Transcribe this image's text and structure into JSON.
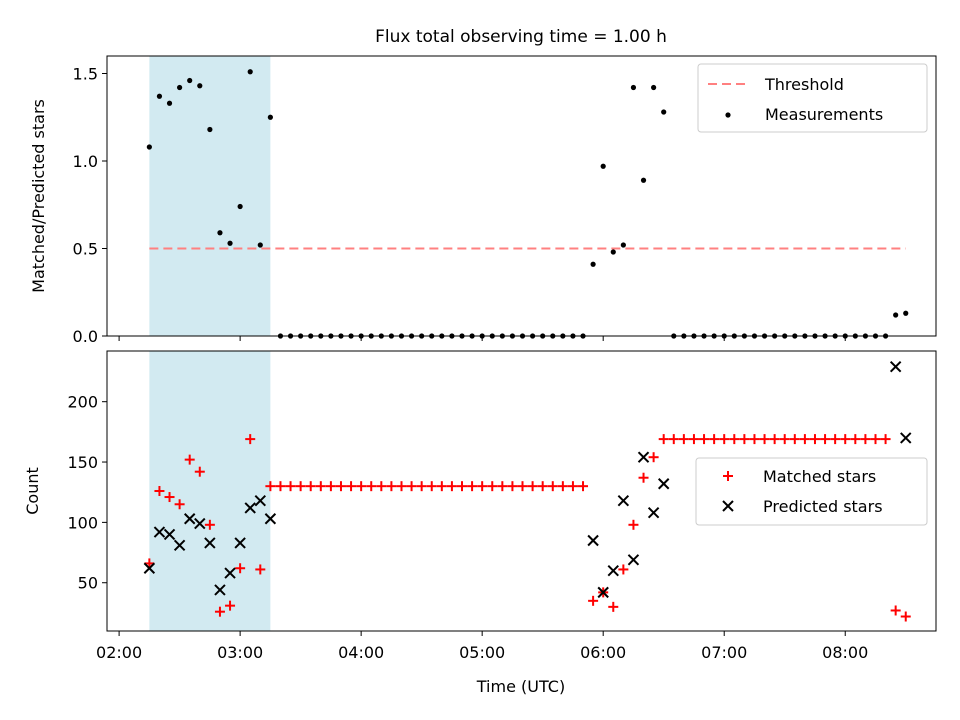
{
  "title": "Flux total observing time = 1.00 h",
  "xlabel": "Time (UTC)",
  "x_tick_labels": [
    "02:00",
    "03:00",
    "04:00",
    "05:00",
    "06:00",
    "07:00",
    "08:00"
  ],
  "colors": {
    "shade": "#add8e6",
    "threshold": "#ff8080",
    "measurements": "#000000",
    "matched": "#ff0000",
    "predicted": "#000000"
  },
  "chart_data": [
    {
      "type": "scatter",
      "ylabel": "Matched/Predicted stars",
      "xlim": [
        "01:54",
        "08:45"
      ],
      "ylim": [
        0,
        1.6
      ],
      "y_ticks": [
        "0.0",
        "0.5",
        "1.0",
        "1.5"
      ],
      "y_tick_values": [
        0,
        0.5,
        1.0,
        1.5
      ],
      "legend_position": "top-right",
      "legend": [
        "Threshold",
        "Measurements"
      ],
      "shaded_interval": [
        "02:15",
        "03:15"
      ],
      "threshold": {
        "name": "Threshold",
        "y": 0.5,
        "x_range": [
          "02:15",
          "08:30"
        ],
        "style": "dashed"
      },
      "measurements": {
        "name": "Measurements",
        "x": [
          "02:15",
          "02:20",
          "02:25",
          "02:30",
          "02:35",
          "02:40",
          "02:45",
          "02:50",
          "02:55",
          "03:00",
          "03:05",
          "03:10",
          "03:15",
          "03:20",
          "03:25",
          "03:30",
          "03:35",
          "03:40",
          "03:45",
          "03:50",
          "03:55",
          "04:00",
          "04:05",
          "04:10",
          "04:15",
          "04:20",
          "04:25",
          "04:30",
          "04:35",
          "04:40",
          "04:45",
          "04:50",
          "04:55",
          "05:00",
          "05:05",
          "05:10",
          "05:15",
          "05:20",
          "05:25",
          "05:30",
          "05:35",
          "05:40",
          "05:45",
          "05:50",
          "05:55",
          "06:00",
          "06:05",
          "06:10",
          "06:15",
          "06:20",
          "06:25",
          "06:30",
          "06:35",
          "06:40",
          "06:45",
          "06:50",
          "06:55",
          "07:00",
          "07:05",
          "07:10",
          "07:15",
          "07:20",
          "07:25",
          "07:30",
          "07:35",
          "07:40",
          "07:45",
          "07:50",
          "07:55",
          "08:00",
          "08:05",
          "08:10",
          "08:15",
          "08:20",
          "08:25",
          "08:30"
        ],
        "y": [
          1.08,
          1.37,
          1.33,
          1.42,
          1.46,
          1.43,
          1.18,
          0.59,
          0.53,
          0.74,
          1.51,
          0.52,
          1.25,
          0,
          0,
          0,
          0,
          0,
          0,
          0,
          0,
          0,
          0,
          0,
          0,
          0,
          0,
          0,
          0,
          0,
          0,
          0,
          0,
          0,
          0,
          0,
          0,
          0,
          0,
          0,
          0,
          0,
          0,
          0,
          0.41,
          0.97,
          0.48,
          0.52,
          1.42,
          0.89,
          1.42,
          1.28,
          0,
          0,
          0,
          0,
          0,
          0,
          0,
          0,
          0,
          0,
          0,
          0,
          0,
          0,
          0,
          0,
          0,
          0,
          0,
          0,
          0,
          0,
          0.12,
          0.13
        ]
      }
    },
    {
      "type": "scatter",
      "ylabel": "Count",
      "xlim": [
        "01:54",
        "08:45"
      ],
      "ylim": [
        10,
        242
      ],
      "y_ticks": [
        "50",
        "100",
        "150",
        "200"
      ],
      "y_tick_values": [
        50,
        100,
        150,
        200
      ],
      "legend_position": "center-right",
      "legend": [
        "Matched stars",
        "Predicted stars"
      ],
      "shaded_interval": [
        "02:15",
        "03:15"
      ],
      "series": [
        {
          "name": "Matched stars",
          "marker": "+",
          "x": [
            "02:15",
            "02:20",
            "02:25",
            "02:30",
            "02:35",
            "02:40",
            "02:45",
            "02:50",
            "02:55",
            "03:00",
            "03:05",
            "03:10",
            "03:15",
            "03:20",
            "03:25",
            "03:30",
            "03:35",
            "03:40",
            "03:45",
            "03:50",
            "03:55",
            "04:00",
            "04:05",
            "04:10",
            "04:15",
            "04:20",
            "04:25",
            "04:30",
            "04:35",
            "04:40",
            "04:45",
            "04:50",
            "04:55",
            "05:00",
            "05:05",
            "05:10",
            "05:15",
            "05:20",
            "05:25",
            "05:30",
            "05:35",
            "05:40",
            "05:45",
            "05:50",
            "05:55",
            "06:00",
            "06:05",
            "06:10",
            "06:15",
            "06:20",
            "06:25",
            "06:30",
            "06:35",
            "06:40",
            "06:45",
            "06:50",
            "06:55",
            "07:00",
            "07:05",
            "07:10",
            "07:15",
            "07:20",
            "07:25",
            "07:30",
            "07:35",
            "07:40",
            "07:45",
            "07:50",
            "07:55",
            "08:00",
            "08:05",
            "08:10",
            "08:15",
            "08:20",
            "08:25",
            "08:30"
          ],
          "y": [
            66,
            126,
            121,
            115,
            152,
            142,
            98,
            26,
            31,
            62,
            169,
            61,
            130,
            130,
            130,
            130,
            130,
            130,
            130,
            130,
            130,
            130,
            130,
            130,
            130,
            130,
            130,
            130,
            130,
            130,
            130,
            130,
            130,
            130,
            130,
            130,
            130,
            130,
            130,
            130,
            130,
            130,
            130,
            130,
            35,
            42,
            30,
            61,
            98,
            137,
            154,
            169,
            169,
            169,
            169,
            169,
            169,
            169,
            169,
            169,
            169,
            169,
            169,
            169,
            169,
            169,
            169,
            169,
            169,
            169,
            169,
            169,
            169,
            169,
            27,
            22
          ]
        },
        {
          "name": "Predicted stars",
          "marker": "x",
          "x": [
            "02:15",
            "02:20",
            "02:25",
            "02:30",
            "02:35",
            "02:40",
            "02:45",
            "02:50",
            "02:55",
            "03:00",
            "03:05",
            "03:10",
            "03:15",
            "05:55",
            "06:00",
            "06:05",
            "06:10",
            "06:15",
            "06:20",
            "06:25",
            "06:30",
            "08:25",
            "08:30"
          ],
          "y": [
            62,
            92,
            90,
            81,
            103,
            99,
            83,
            44,
            58,
            83,
            112,
            118,
            103,
            85,
            42,
            60,
            118,
            69,
            154,
            108,
            132,
            229,
            170
          ]
        }
      ]
    }
  ]
}
